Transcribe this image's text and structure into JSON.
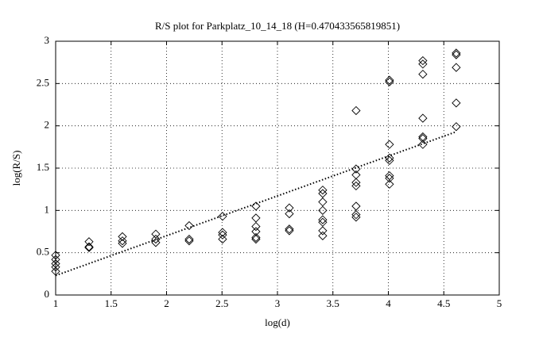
{
  "chart_data": {
    "type": "scatter",
    "title": "R/S plot for Parkplatz_10_14_18 (H=0.470433565819851)",
    "xlabel": "log(d)",
    "ylabel": "log(R/S)",
    "xlim": [
      1,
      5
    ],
    "ylim": [
      0,
      3
    ],
    "xticks": [
      1,
      1.5,
      2,
      2.5,
      3,
      3.5,
      4,
      4.5,
      5
    ],
    "yticks": [
      0,
      0.5,
      1,
      1.5,
      2,
      2.5,
      3
    ],
    "grid": true,
    "series": [
      {
        "type": "scatter",
        "marker": "diamond",
        "color": "#000000",
        "x": [
          1,
          1,
          1,
          1,
          1,
          1.301,
          1.301,
          1.301,
          1.602,
          1.602,
          1.602,
          1.903,
          1.903,
          1.903,
          2.204,
          2.204,
          2.204,
          2.505,
          2.505,
          2.505,
          2.505,
          2.806,
          2.806,
          2.806,
          2.806,
          2.806,
          2.806,
          3.107,
          3.107,
          3.107,
          3.107,
          3.408,
          3.408,
          3.408,
          3.408,
          3.408,
          3.408,
          3.408,
          3.408,
          3.709,
          3.709,
          3.709,
          3.709,
          3.709,
          3.709,
          3.709,
          3.709,
          4.01,
          4.01,
          4.01,
          4.01,
          4.01,
          4.01,
          4.01,
          4.01,
          4.311,
          4.311,
          4.311,
          4.311,
          4.311,
          4.311,
          4.311,
          4.612,
          4.612,
          4.612,
          4.612,
          4.612
        ],
        "values": [
          0.47,
          0.42,
          0.37,
          0.33,
          0.28,
          0.63,
          0.57,
          0.56,
          0.69,
          0.64,
          0.61,
          0.72,
          0.66,
          0.62,
          0.82,
          0.66,
          0.64,
          0.93,
          0.74,
          0.71,
          0.66,
          1.05,
          0.91,
          0.81,
          0.75,
          0.68,
          0.66,
          1.03,
          0.96,
          0.78,
          0.76,
          1.24,
          1.2,
          1.1,
          1.0,
          0.89,
          0.86,
          0.76,
          0.7,
          2.18,
          1.49,
          1.42,
          1.33,
          1.29,
          1.05,
          0.95,
          0.92,
          2.54,
          2.52,
          1.78,
          1.62,
          1.59,
          1.41,
          1.38,
          1.31,
          2.77,
          2.73,
          2.61,
          2.09,
          1.87,
          1.85,
          1.78,
          2.86,
          2.84,
          2.69,
          2.27,
          1.99
        ]
      },
      {
        "type": "line",
        "style": "dotted",
        "color": "#000000",
        "x": [
          1,
          4.612
        ],
        "values": [
          0.23,
          1.93
        ]
      }
    ]
  }
}
